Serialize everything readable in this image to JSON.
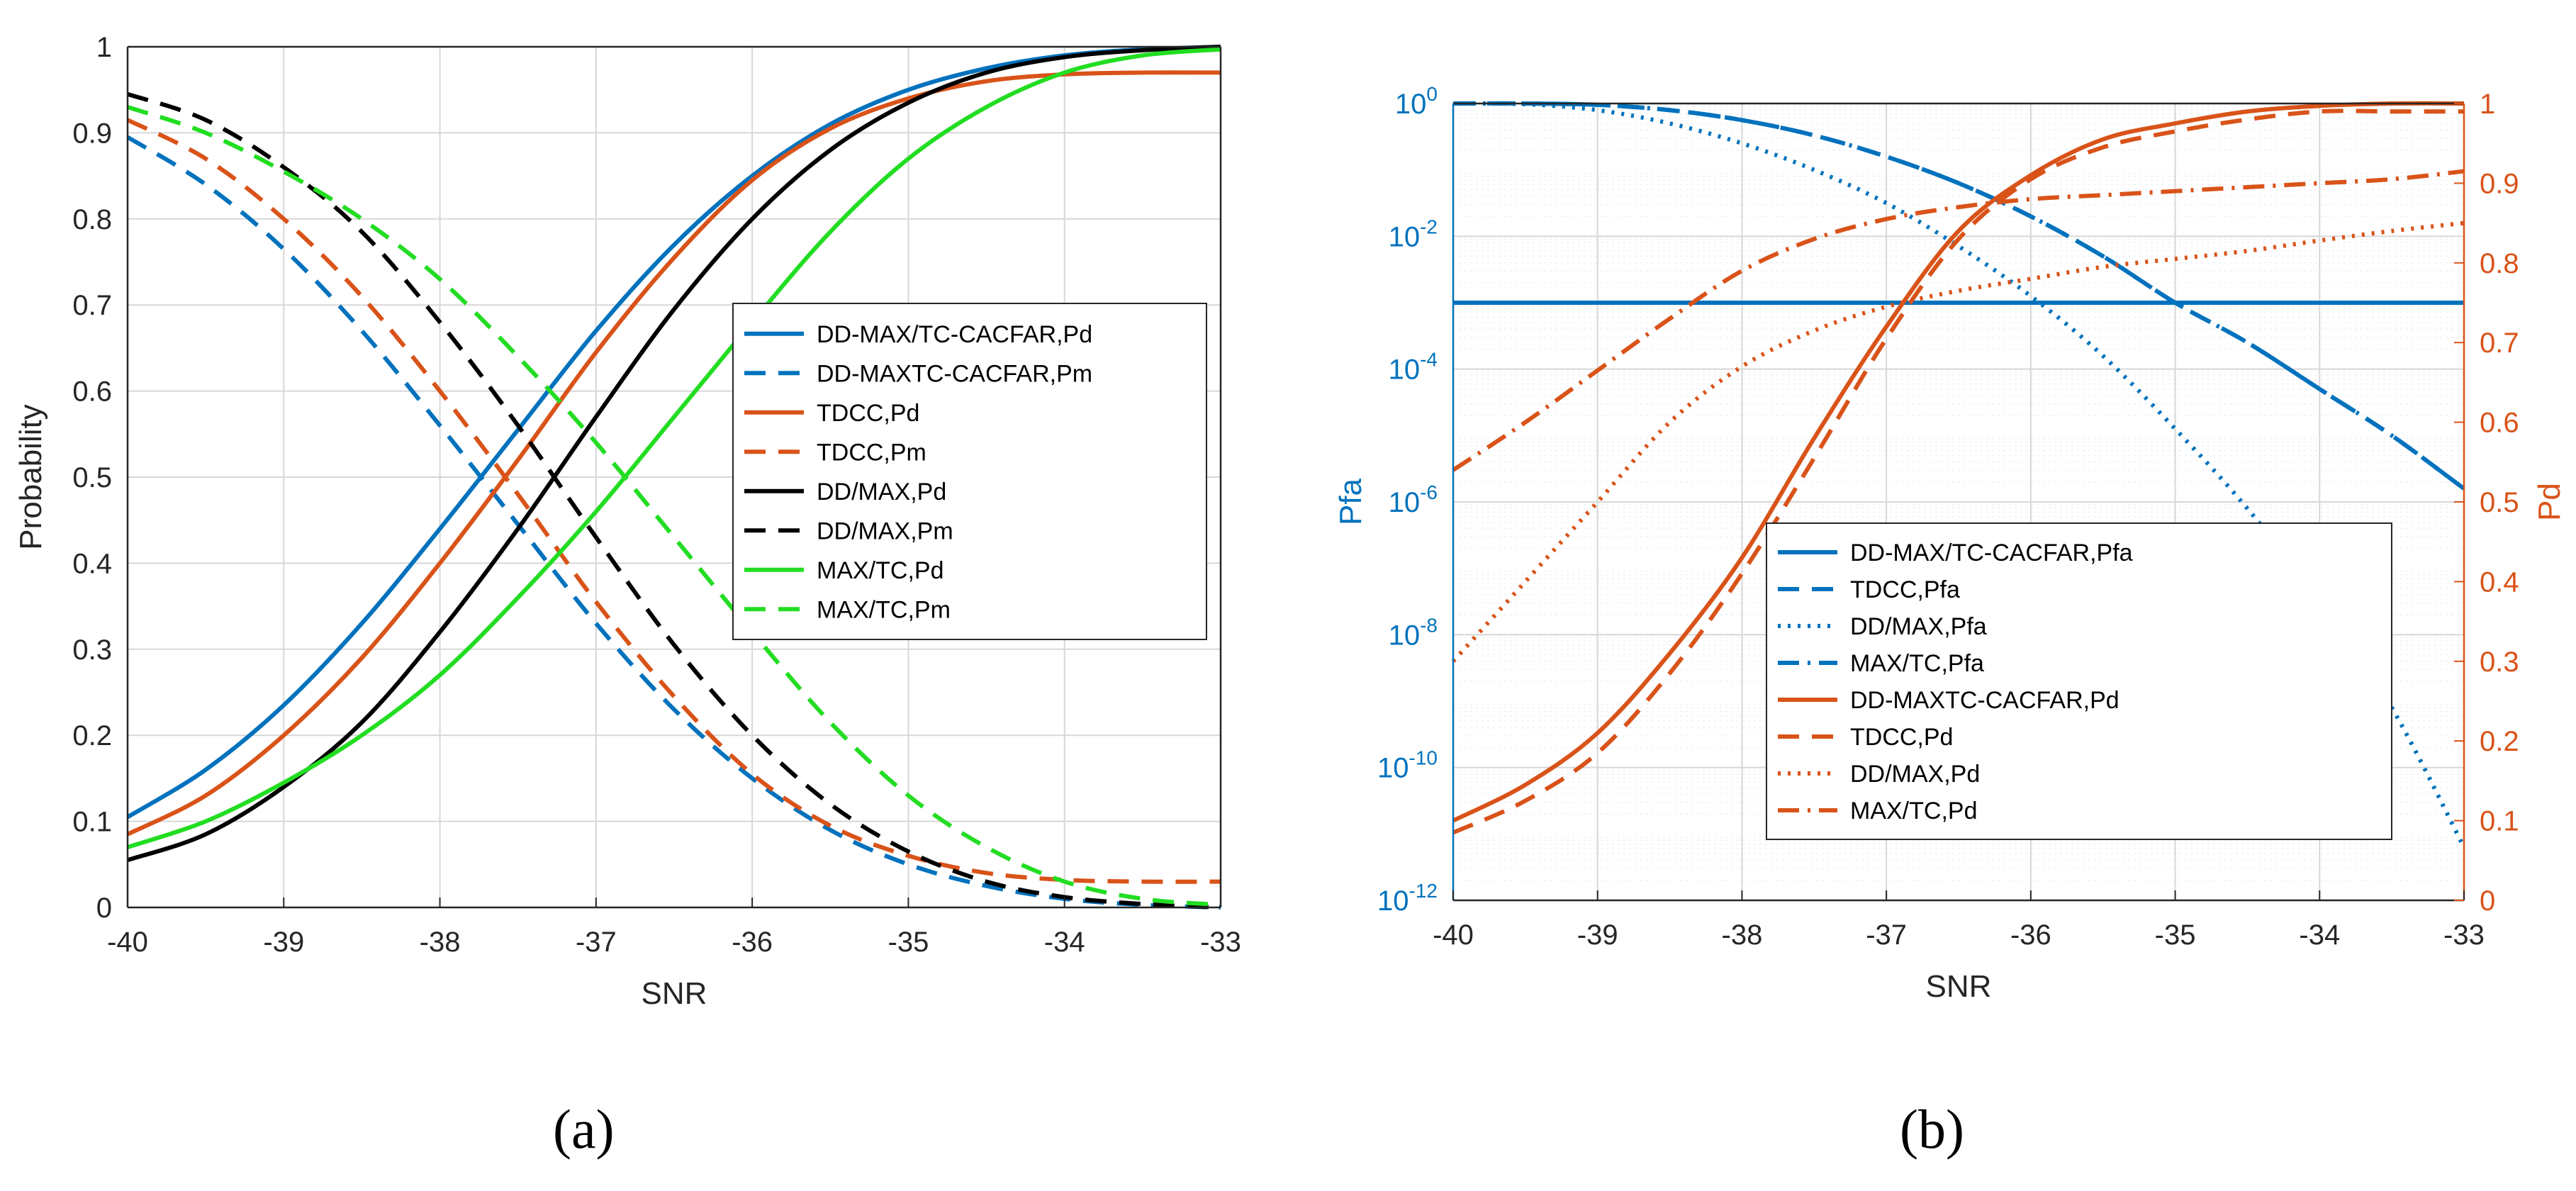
{
  "captions": {
    "a": "(a)",
    "b": "(b)"
  },
  "colors": {
    "blue": "#0072BD",
    "orange": "#D95319",
    "black": "#000000",
    "green": "#22DD22",
    "grid": "#d7d7d7",
    "axis": "#262626"
  },
  "chart_data": [
    {
      "type": "line",
      "id": "a",
      "xlabel": "SNR",
      "ylabel": "Probability",
      "xlim": [
        -40,
        -33
      ],
      "ylim": [
        0,
        1
      ],
      "xticks": [
        "-40",
        "-39",
        "-38",
        "-37",
        "-36",
        "-35",
        "-34",
        "-33"
      ],
      "yticks": [
        "0",
        "0.1",
        "0.2",
        "0.3",
        "0.4",
        "0.5",
        "0.6",
        "0.7",
        "0.8",
        "0.9",
        "1"
      ],
      "grid": true,
      "legend_position": "center-right",
      "x": [
        -40,
        -39.5,
        -39,
        -38.5,
        -38,
        -37.5,
        -37,
        -36.5,
        -36,
        -35.5,
        -35,
        -34.5,
        -34,
        -33.5,
        -33
      ],
      "series": [
        {
          "name": "DD-MAX/TC-CACFAR,Pd",
          "color": "blue",
          "dash": "solid",
          "values": [
            0.105,
            0.16,
            0.235,
            0.33,
            0.44,
            0.555,
            0.67,
            0.77,
            0.85,
            0.91,
            0.95,
            0.975,
            0.99,
            0.997,
            1.0
          ]
        },
        {
          "name": "DD-MAXTC-CACFAR,Pm",
          "color": "blue",
          "dash": "dashed",
          "values": [
            0.895,
            0.84,
            0.765,
            0.67,
            0.56,
            0.445,
            0.33,
            0.23,
            0.15,
            0.09,
            0.05,
            0.025,
            0.01,
            0.003,
            0.0
          ]
        },
        {
          "name": "TDCC,Pd",
          "color": "orange",
          "dash": "solid",
          "values": [
            0.085,
            0.13,
            0.2,
            0.29,
            0.4,
            0.52,
            0.645,
            0.755,
            0.845,
            0.905,
            0.94,
            0.96,
            0.968,
            0.97,
            0.97
          ]
        },
        {
          "name": "TDCC,Pm",
          "color": "orange",
          "dash": "dashed",
          "values": [
            0.915,
            0.87,
            0.8,
            0.71,
            0.6,
            0.48,
            0.355,
            0.245,
            0.155,
            0.095,
            0.06,
            0.04,
            0.032,
            0.03,
            0.03
          ]
        },
        {
          "name": "DD/MAX,Pd",
          "color": "black",
          "dash": "solid",
          "values": [
            0.055,
            0.085,
            0.14,
            0.215,
            0.32,
            0.44,
            0.57,
            0.695,
            0.8,
            0.88,
            0.935,
            0.97,
            0.988,
            0.996,
            1.0
          ]
        },
        {
          "name": "DD/MAX,Pm",
          "color": "black",
          "dash": "dashed",
          "values": [
            0.945,
            0.915,
            0.86,
            0.785,
            0.68,
            0.56,
            0.43,
            0.305,
            0.2,
            0.12,
            0.065,
            0.03,
            0.012,
            0.004,
            0.0
          ]
        },
        {
          "name": "MAX/TC,Pd",
          "color": "green",
          "dash": "solid",
          "values": [
            0.07,
            0.1,
            0.145,
            0.2,
            0.27,
            0.36,
            0.46,
            0.57,
            0.68,
            0.785,
            0.87,
            0.93,
            0.97,
            0.99,
            0.997
          ]
        },
        {
          "name": "MAX/TC,Pm",
          "color": "green",
          "dash": "dashed",
          "values": [
            0.93,
            0.9,
            0.855,
            0.8,
            0.73,
            0.64,
            0.54,
            0.43,
            0.32,
            0.215,
            0.13,
            0.07,
            0.03,
            0.01,
            0.003
          ]
        }
      ]
    },
    {
      "type": "line",
      "id": "b",
      "xlabel": "SNR",
      "ylabel_left": "Pfa",
      "ylabel_right": "Pd",
      "xlim": [
        -40,
        -33
      ],
      "ylim_left_log10": [
        -12,
        0
      ],
      "ylim_right": [
        0,
        1
      ],
      "xticks": [
        "-40",
        "-39",
        "-38",
        "-37",
        "-36",
        "-35",
        "-34",
        "-33"
      ],
      "yticks_left": [
        {
          "base": "10",
          "exp": "0",
          "value": 0
        },
        {
          "base": "10",
          "exp": "-2",
          "value": -2
        },
        {
          "base": "10",
          "exp": "-4",
          "value": -4
        },
        {
          "base": "10",
          "exp": "-6",
          "value": -6
        },
        {
          "base": "10",
          "exp": "-8",
          "value": -8
        },
        {
          "base": "10",
          "exp": "-10",
          "value": -10
        },
        {
          "base": "10",
          "exp": "-12",
          "value": -12
        }
      ],
      "yticks_right": [
        "0",
        "0.1",
        "0.2",
        "0.3",
        "0.4",
        "0.5",
        "0.6",
        "0.7",
        "0.8",
        "0.9",
        "1"
      ],
      "grid": true,
      "legend_position": "bottom-center",
      "x": [
        -40,
        -39.5,
        -39,
        -38.5,
        -38,
        -37.5,
        -37,
        -36.5,
        -36,
        -35.5,
        -35,
        -34.5,
        -34,
        -33.5,
        -33
      ],
      "series": [
        {
          "name": "DD-MAX/TC-CACFAR,Pfa",
          "axis": "left",
          "color": "blue",
          "dash": "solid",
          "log10_values": [
            -3,
            -3,
            -3,
            -3,
            -3,
            -3,
            -3,
            -3,
            -3,
            -3,
            -3,
            -3,
            -3,
            -3,
            -3
          ]
        },
        {
          "name": "TDCC,Pfa",
          "axis": "left",
          "color": "blue",
          "dash": "dashed",
          "log10_values": [
            0,
            0,
            -0.02,
            -0.1,
            -0.25,
            -0.48,
            -0.8,
            -1.2,
            -1.7,
            -2.3,
            -3.0,
            -3.6,
            -4.3,
            -5.0,
            -5.8
          ]
        },
        {
          "name": "DD/MAX,Pfa",
          "axis": "left",
          "color": "blue",
          "dash": "dotted",
          "log10_values": [
            0,
            -0.01,
            -0.1,
            -0.3,
            -0.6,
            -1.0,
            -1.5,
            -2.15,
            -2.9,
            -3.8,
            -4.9,
            -6.1,
            -7.5,
            -9.1,
            -11.2
          ]
        },
        {
          "name": "MAX/TC,Pfa",
          "axis": "left",
          "color": "blue",
          "dash": "dashdot",
          "log10_values": [
            0,
            0,
            -0.02,
            -0.1,
            -0.25,
            -0.48,
            -0.8,
            -1.2,
            -1.7,
            -2.3,
            -3.0,
            -3.6,
            -4.3,
            -5.0,
            -5.8
          ]
        },
        {
          "name": "DD-MAXTC-CACFAR,Pd",
          "axis": "right",
          "color": "orange",
          "dash": "solid",
          "values": [
            0.1,
            0.145,
            0.21,
            0.31,
            0.43,
            0.58,
            0.72,
            0.84,
            0.91,
            0.955,
            0.975,
            0.99,
            0.997,
            1.0,
            1.0
          ]
        },
        {
          "name": "TDCC,Pd",
          "axis": "right",
          "color": "orange",
          "dash": "dashed",
          "values": [
            0.085,
            0.125,
            0.185,
            0.285,
            0.41,
            0.555,
            0.705,
            0.83,
            0.905,
            0.945,
            0.965,
            0.98,
            0.99,
            0.99,
            0.99
          ]
        },
        {
          "name": "DD/MAX,Pd",
          "axis": "right",
          "color": "orange",
          "dash": "dotted",
          "values": [
            0.3,
            0.4,
            0.5,
            0.6,
            0.67,
            0.715,
            0.745,
            0.765,
            0.78,
            0.795,
            0.805,
            0.815,
            0.828,
            0.84,
            0.85
          ]
        },
        {
          "name": "MAX/TC,Pd",
          "axis": "right",
          "color": "orange",
          "dash": "dashdot",
          "values": [
            0.54,
            0.6,
            0.665,
            0.73,
            0.79,
            0.83,
            0.855,
            0.87,
            0.88,
            0.885,
            0.89,
            0.895,
            0.9,
            0.905,
            0.915
          ]
        }
      ]
    }
  ]
}
